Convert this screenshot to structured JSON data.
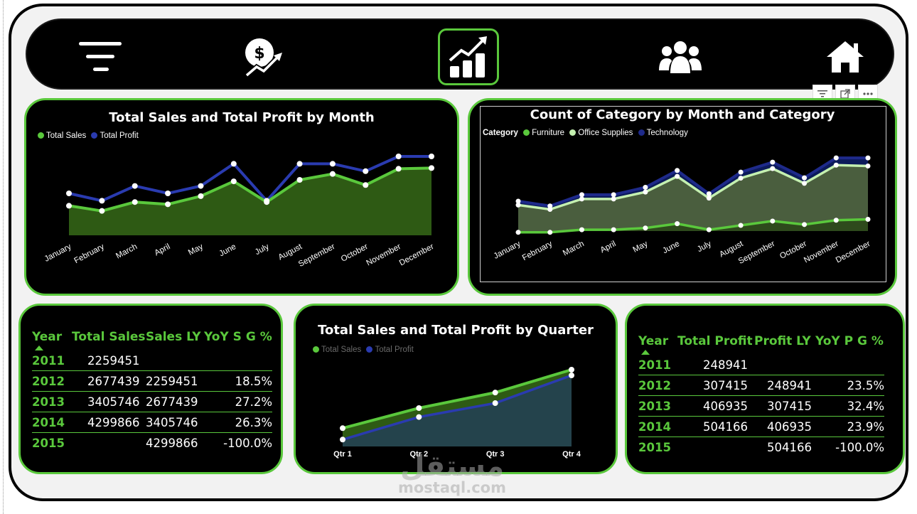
{
  "nav": {
    "items": [
      {
        "name": "filter-lines-icon",
        "active": false
      },
      {
        "name": "dollar-growth-icon",
        "active": false
      },
      {
        "name": "bar-chart-trend-icon",
        "active": true
      },
      {
        "name": "users-icon",
        "active": false
      },
      {
        "name": "home-icon",
        "active": false
      }
    ]
  },
  "colors": {
    "green": "#5ac83c",
    "navy": "#1e2a8a",
    "light_green": "#c4f0b0",
    "dark_green_fill": "#2e5a14",
    "teal_fill": "#24434c"
  },
  "charts": {
    "monthly": {
      "title": "Total Sales and Total Profit by Month",
      "legend": [
        "Total Sales",
        "Total Profit"
      ]
    },
    "category": {
      "title": "Count of Category by Month and Category",
      "legend_title": "Category",
      "legend": [
        "Furniture",
        "Office Supplies",
        "Technology"
      ]
    },
    "quarterly": {
      "title": "Total Sales and Total Profit by Quarter",
      "legend": [
        "Total Sales",
        "Total Profit"
      ]
    }
  },
  "chart_data": [
    {
      "type": "area",
      "title": "Total Sales and Total Profit by Month",
      "categories": [
        "January",
        "February",
        "March",
        "April",
        "May",
        "June",
        "July",
        "August",
        "September",
        "October",
        "November",
        "December"
      ],
      "series": [
        {
          "name": "Total Sales",
          "values": [
            40,
            33,
            45,
            42,
            53,
            73,
            45,
            75,
            83,
            68,
            90,
            91
          ]
        },
        {
          "name": "Total Profit",
          "values": [
            5,
            4,
            6,
            5,
            6,
            9,
            4,
            9,
            9,
            8,
            10,
            10
          ]
        }
      ],
      "legend_position": "top-left"
    },
    {
      "type": "area",
      "title": "Count of Category by Month and Category",
      "categories": [
        "January",
        "February",
        "March",
        "April",
        "May",
        "June",
        "July",
        "August",
        "September",
        "October",
        "November",
        "December"
      ],
      "series": [
        {
          "name": "Furniture",
          "values": [
            10,
            10,
            13,
            13,
            15,
            20,
            13,
            18,
            23,
            19,
            24,
            25
          ]
        },
        {
          "name": "Office Supplies",
          "values": [
            30,
            25,
            37,
            37,
            45,
            63,
            38,
            61,
            72,
            55,
            76,
            75
          ]
        },
        {
          "name": "Technology",
          "values": [
            9,
            8,
            10,
            10,
            11,
            14,
            10,
            14,
            15,
            13,
            17,
            19
          ]
        }
      ],
      "legend_position": "top-left"
    },
    {
      "type": "area",
      "title": "Total Sales and Total Profit by Quarter",
      "categories": [
        "Qtr 1",
        "Qtr 2",
        "Qtr 3",
        "Qtr 4"
      ],
      "series": [
        {
          "name": "Total Sales",
          "values": [
            2200000,
            3300000,
            4150000,
            5400000
          ]
        },
        {
          "name": "Total Profit",
          "values": [
            250000,
            380000,
            460000,
            620000
          ]
        }
      ],
      "legend_position": "top-left"
    }
  ],
  "sales_table": {
    "headers": [
      "Year",
      "Total Sales",
      "Sales LY",
      "YoY S G %"
    ],
    "rows": [
      [
        "2011",
        "2259451",
        "",
        ""
      ],
      [
        "2012",
        "2677439",
        "2259451",
        "18.5%"
      ],
      [
        "2013",
        "3405746",
        "2677439",
        "27.2%"
      ],
      [
        "2014",
        "4299866",
        "3405746",
        "26.3%"
      ],
      [
        "2015",
        "",
        "4299866",
        "-100.0%"
      ]
    ]
  },
  "profit_table": {
    "headers": [
      "Year",
      "Total Profit",
      "Profit LY",
      "YoY P G %"
    ],
    "rows": [
      [
        "2011",
        "248941",
        "",
        ""
      ],
      [
        "2012",
        "307415",
        "248941",
        "23.5%"
      ],
      [
        "2013",
        "406935",
        "307415",
        "32.4%"
      ],
      [
        "2014",
        "504166",
        "406935",
        "23.9%"
      ],
      [
        "2015",
        "",
        "504166",
        "-100.0%"
      ]
    ]
  },
  "watermark": {
    "arabic": "مستقل",
    "latin": "mostaql.com"
  }
}
